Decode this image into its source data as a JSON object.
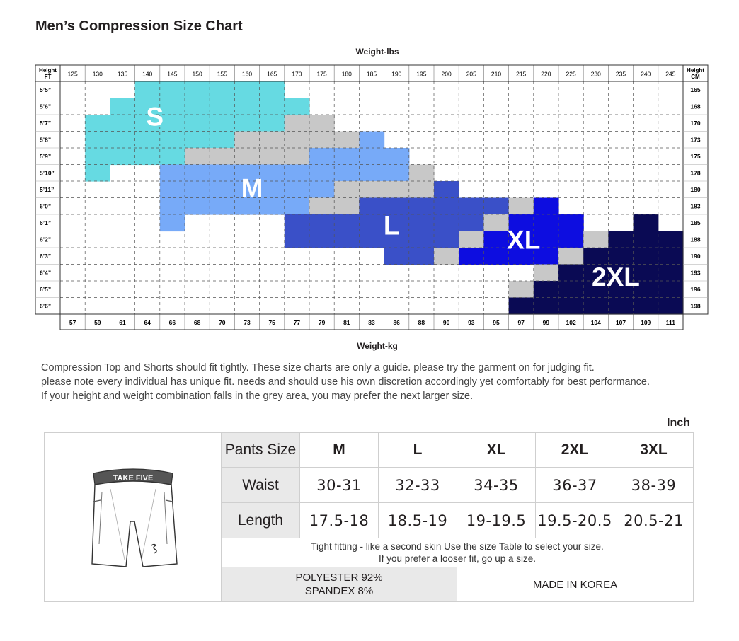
{
  "page": {
    "title": "Men’s Compression Size Chart",
    "notes": [
      "Compression Top and Shorts should fit tightly. These size charts are only a guide.  please try the garment on for judging fit.",
      "please note every individual has unique fit. needs and should use his own discretion accordingly yet comfortably for best performance.",
      "If your height and weight combination falls in the grey area, you may prefer the next larger size."
    ]
  },
  "chart_data": {
    "type": "heatmap",
    "title": "Men’s Compression Size Chart",
    "x_top_label": "Weight-lbs",
    "x_bottom_label": "Weight-kg",
    "y_left_label": "Height FT",
    "y_right_label": "Height CM",
    "lbs": [
      "125",
      "130",
      "135",
      "140",
      "145",
      "150",
      "155",
      "160",
      "165",
      "170",
      "175",
      "180",
      "185",
      "190",
      "195",
      "200",
      "205",
      "210",
      "215",
      "220",
      "225",
      "230",
      "235",
      "240",
      "245"
    ],
    "kg": [
      "57",
      "59",
      "61",
      "64",
      "66",
      "68",
      "70",
      "73",
      "75",
      "77",
      "79",
      "81",
      "83",
      "86",
      "88",
      "90",
      "93",
      "95",
      "97",
      "99",
      "102",
      "104",
      "107",
      "109",
      "111"
    ],
    "heights_ft": [
      "5’5”",
      "5’6”",
      "5’7”",
      "5’8”",
      "5’9”",
      "5’10”",
      "5’11”",
      "6’0”",
      "6’1”",
      "6’2”",
      "6’3”",
      "6’4”",
      "6’5”",
      "6’6”"
    ],
    "heights_cm": [
      "165",
      "168",
      "170",
      "173",
      "175",
      "178",
      "180",
      "183",
      "185",
      "188",
      "190",
      "193",
      "196",
      "198"
    ],
    "size_colors": {
      "S": "#66dae2",
      "M": "#77aaf8",
      "L": "#3a50c8",
      "XL": "#0d0de0",
      "2XL": "#0a0a54",
      "grey": "#c8c8c8"
    },
    "size_labels": [
      "S",
      "M",
      "L",
      "XL",
      "2XL"
    ],
    "grid": [
      [
        "",
        "",
        "",
        "S",
        "S",
        "S",
        "S",
        "S",
        "S",
        "",
        "",
        "",
        "",
        "",
        "",
        "",
        "",
        "",
        "",
        "",
        "",
        "",
        "",
        "",
        ""
      ],
      [
        "",
        "",
        "S",
        "S",
        "S",
        "S",
        "S",
        "S",
        "S",
        "S",
        "",
        "",
        "",
        "",
        "",
        "",
        "",
        "",
        "",
        "",
        "",
        "",
        "",
        "",
        ""
      ],
      [
        "",
        "S",
        "S",
        "S",
        "S",
        "S",
        "S",
        "S",
        "S",
        "grey",
        "grey",
        "",
        "",
        "",
        "",
        "",
        "",
        "",
        "",
        "",
        "",
        "",
        "",
        "",
        ""
      ],
      [
        "",
        "S",
        "S",
        "S",
        "S",
        "S",
        "S",
        "grey",
        "grey",
        "grey",
        "grey",
        "grey",
        "M",
        "",
        "",
        "",
        "",
        "",
        "",
        "",
        "",
        "",
        "",
        "",
        ""
      ],
      [
        "",
        "S",
        "S",
        "S",
        "S",
        "grey",
        "grey",
        "grey",
        "grey",
        "grey",
        "M",
        "M",
        "M",
        "M",
        "",
        "",
        "",
        "",
        "",
        "",
        "",
        "",
        "",
        "",
        ""
      ],
      [
        "",
        "S",
        "",
        "",
        "M",
        "M",
        "M",
        "M",
        "M",
        "M",
        "M",
        "M",
        "M",
        "M",
        "grey",
        "",
        "",
        "",
        "",
        "",
        "",
        "",
        "",
        "",
        ""
      ],
      [
        "",
        "",
        "",
        "",
        "M",
        "M",
        "M",
        "M",
        "M",
        "M",
        "M",
        "grey",
        "grey",
        "grey",
        "grey",
        "L",
        "",
        "",
        "",
        "",
        "",
        "",
        "",
        "",
        ""
      ],
      [
        "",
        "",
        "",
        "",
        "M",
        "M",
        "M",
        "M",
        "M",
        "M",
        "grey",
        "grey",
        "L",
        "L",
        "L",
        "L",
        "L",
        "L",
        "grey",
        "XL",
        "",
        "",
        "",
        "",
        ""
      ],
      [
        "",
        "",
        "",
        "",
        "M",
        "",
        "",
        "",
        "",
        "L",
        "L",
        "L",
        "L",
        "L",
        "L",
        "L",
        "L",
        "grey",
        "XL",
        "XL",
        "XL",
        "",
        "",
        "2XL",
        ""
      ],
      [
        "",
        "",
        "",
        "",
        "",
        "",
        "",
        "",
        "",
        "L",
        "L",
        "L",
        "L",
        "L",
        "L",
        "L",
        "grey",
        "XL",
        "XL",
        "XL",
        "XL",
        "grey",
        "2XL",
        "2XL",
        "2XL"
      ],
      [
        "",
        "",
        "",
        "",
        "",
        "",
        "",
        "",
        "",
        "",
        "",
        "",
        "",
        "L",
        "L",
        "grey",
        "XL",
        "XL",
        "XL",
        "XL",
        "grey",
        "2XL",
        "2XL",
        "2XL",
        "2XL"
      ],
      [
        "",
        "",
        "",
        "",
        "",
        "",
        "",
        "",
        "",
        "",
        "",
        "",
        "",
        "",
        "",
        "",
        "",
        "",
        "",
        "grey",
        "2XL",
        "2XL",
        "2XL",
        "2XL",
        "2XL"
      ],
      [
        "",
        "",
        "",
        "",
        "",
        "",
        "",
        "",
        "",
        "",
        "",
        "",
        "",
        "",
        "",
        "",
        "",
        "",
        "grey",
        "2XL",
        "2XL",
        "2XL",
        "2XL",
        "2XL",
        "2XL"
      ],
      [
        "",
        "",
        "",
        "",
        "",
        "",
        "",
        "",
        "",
        "",
        "",
        "",
        "",
        "",
        "",
        "",
        "",
        "",
        "2XL",
        "2XL",
        "2XL",
        "2XL",
        "2XL",
        "2XL",
        "2XL"
      ]
    ]
  },
  "pants": {
    "unit_label": "Inch",
    "brand": "TAKE FIVE",
    "header": "Pants Size",
    "sizes": [
      "M",
      "L",
      "XL",
      "2XL",
      "3XL"
    ],
    "rows": [
      {
        "label": "Waist",
        "values": [
          "30-31",
          "32-33",
          "34-35",
          "36-37",
          "38-39"
        ]
      },
      {
        "label": "Length",
        "values": [
          "17.5-18",
          "18.5-19",
          "19-19.5",
          "19.5-20.5",
          "20.5-21"
        ]
      }
    ],
    "fit_note_1": "Tight fitting - like a second skin Use the size Table to select your size.",
    "fit_note_2": "If you prefer a looser fit, go up a size.",
    "material_1": "POLYESTER 92%",
    "material_2": "SPANDEX 8%",
    "origin": "MADE IN KOREA"
  }
}
